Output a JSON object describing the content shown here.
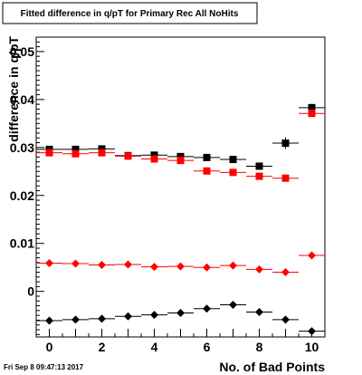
{
  "timestamp": "Fri Sep  8 09:47:13 2017",
  "chart_data": {
    "type": "scatter",
    "title": "Fitted difference in q/pT for Primary Rec All NoHits",
    "xlabel": "No. of Bad Points",
    "ylabel": "difference in q/pT",
    "xlim": [
      -0.5,
      10.5
    ],
    "ylim": [
      -0.0095,
      0.053
    ],
    "grid": false,
    "x_ticks": [
      "0",
      "2",
      "4",
      "6",
      "8",
      "10"
    ],
    "y_ticks": [
      "0",
      "0.01",
      "0.02",
      "0.03",
      "0.04",
      "0.05"
    ],
    "x": [
      0,
      1,
      2,
      3,
      4,
      5,
      6,
      7,
      8,
      9,
      10
    ],
    "series": [
      {
        "marker": "square",
        "color": "#000000",
        "values": [
          0.0296,
          0.0296,
          0.0297,
          0.0283,
          0.0284,
          0.0281,
          0.0279,
          0.0275,
          0.0261,
          0.0309,
          0.0383
        ],
        "errors": [
          0.0004,
          0.0004,
          0.0004,
          0.0004,
          0.0004,
          0.0004,
          0.0005,
          0.0005,
          0.0006,
          0.0012,
          0.0008
        ]
      },
      {
        "marker": "square",
        "color": "#ff0000",
        "values": [
          0.0289,
          0.0287,
          0.0289,
          0.0282,
          0.0276,
          0.0273,
          0.0251,
          0.0248,
          0.024,
          0.0236,
          0.0371
        ],
        "errors": [
          0.0003,
          0.0003,
          0.0003,
          0.0003,
          0.0003,
          0.0003,
          0.0004,
          0.0004,
          0.0004,
          0.0005,
          0.0006
        ]
      },
      {
        "marker": "diamond",
        "color": "#ff0000",
        "values": [
          0.0059,
          0.0058,
          0.0055,
          0.0056,
          0.0051,
          0.0052,
          0.005,
          0.0054,
          0.0046,
          0.004,
          0.0075
        ],
        "errors": [
          0.0003,
          0.0003,
          0.0003,
          0.0003,
          0.0003,
          0.0003,
          0.0003,
          0.0003,
          0.0004,
          0.0004,
          0.0004
        ]
      },
      {
        "marker": "diamond",
        "color": "#000000",
        "values": [
          -0.0061,
          -0.0059,
          -0.0057,
          -0.0052,
          -0.0049,
          -0.0045,
          -0.0036,
          -0.0028,
          -0.0043,
          -0.0059,
          -0.0083
        ],
        "errors": [
          0.0003,
          0.0003,
          0.0003,
          0.0003,
          0.0003,
          0.0003,
          0.0004,
          0.0004,
          0.0005,
          0.0008,
          0.0004
        ]
      }
    ]
  }
}
